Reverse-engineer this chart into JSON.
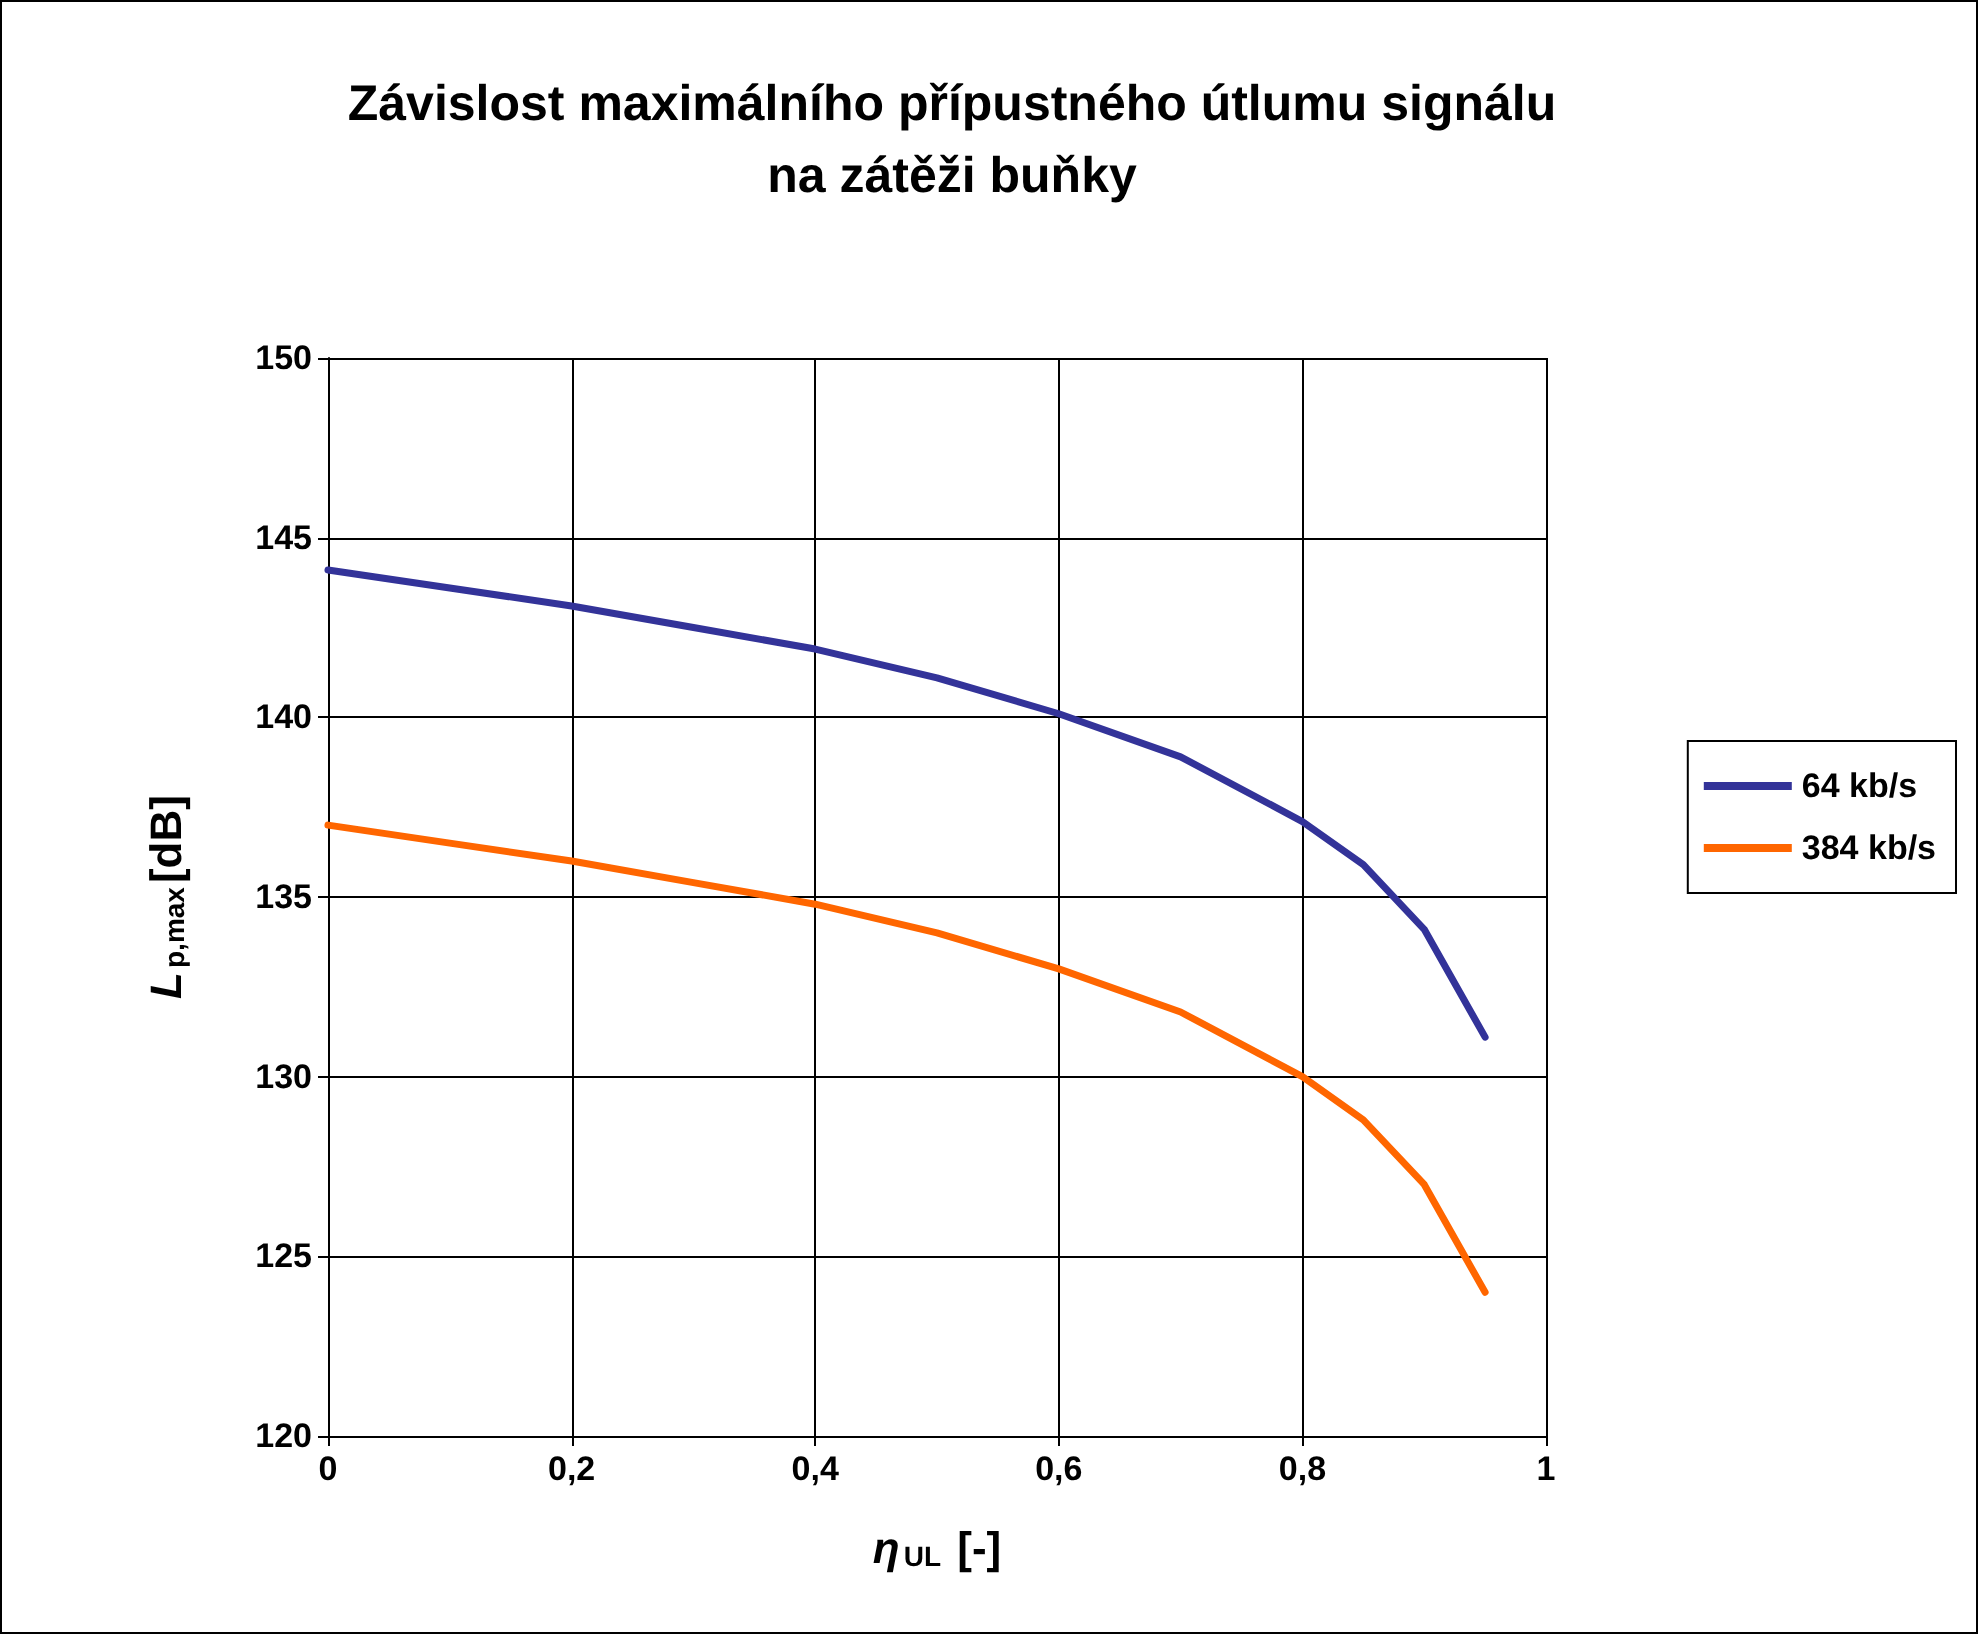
{
  "chart_data": {
    "type": "line",
    "title": "Závislost maximálního přípustného útlumu signálu\nna zátěži buňky",
    "xlabel": "η$_{UL}$ [-]",
    "ylabel": "L$_{p,max}$[dB]",
    "x": [
      0,
      0.1,
      0.2,
      0.3,
      0.4,
      0.5,
      0.6,
      0.7,
      0.8,
      0.85,
      0.9,
      0.95
    ],
    "series": [
      {
        "name": "64 kb/s",
        "color": "#333399",
        "values": [
          144.1,
          143.6,
          143.1,
          142.5,
          141.9,
          141.1,
          140.1,
          138.9,
          137.1,
          135.9,
          134.1,
          131.1
        ]
      },
      {
        "name": "384 kb/s",
        "color": "#ff6600",
        "values": [
          137.0,
          136.5,
          136.0,
          135.4,
          134.8,
          134.0,
          133.0,
          131.8,
          130.0,
          128.8,
          127.0,
          124.0
        ]
      }
    ],
    "xlim": [
      0,
      1
    ],
    "xticks": [
      0,
      {
        "value": 0.2,
        "label": "0,2"
      },
      {
        "value": 0.4,
        "label": "0,4"
      },
      {
        "value": 0.6,
        "label": "0,6"
      },
      {
        "value": 0.8,
        "label": "0,8"
      },
      1
    ],
    "ylim": [
      120,
      150
    ],
    "yticks": [
      120,
      125,
      130,
      135,
      140,
      145,
      150
    ],
    "grid": true,
    "legend": "right",
    "marker": "none",
    "line_style": "solid"
  }
}
